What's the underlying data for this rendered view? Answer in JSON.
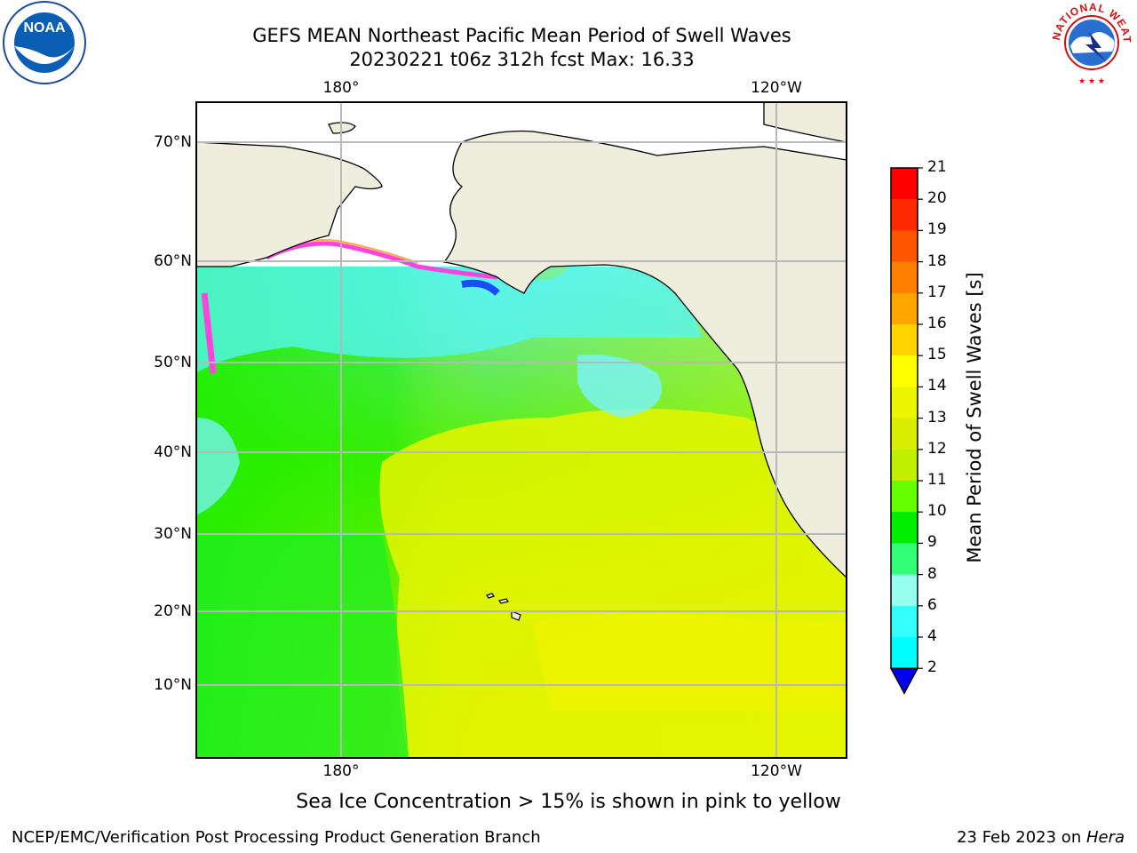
{
  "title_line1": "GEFS MEAN Northeast Pacific Mean Period of Swell Waves",
  "title_line2": "20230221 t06z 312h fcst   Max: 16.33",
  "ice_note": "Sea Ice Concentration > 15% is shown in pink to yellow",
  "footer_left": "NCEP/EMC/Verification Post Processing Product Generation Branch",
  "footer_date": "23 Feb 2023 on ",
  "footer_host": "Hera",
  "logos": {
    "noaa_text": "NOAA",
    "nws_text": "NATIONAL WEATHER SERVICE"
  },
  "map": {
    "lon_labels_top": [
      "180°",
      "120°W"
    ],
    "lon_labels_bottom": [
      "180°",
      "120°W"
    ],
    "lat_labels": [
      "70°N",
      "60°N",
      "50°N",
      "40°N",
      "30°N",
      "20°N",
      "10°N"
    ],
    "land_color": "#efedde",
    "grid_color": "#b8b8b8"
  },
  "colorbar": {
    "label": "Mean Period of Swell Waves [s]",
    "ticks": [
      "21",
      "20",
      "19",
      "18",
      "17",
      "16",
      "15",
      "14",
      "13",
      "12",
      "11",
      "10",
      "9",
      "8",
      "6",
      "4",
      "2"
    ],
    "colors": [
      "#ff0000",
      "#ff2a00",
      "#ff5500",
      "#ff7f00",
      "#ffa500",
      "#ffd400",
      "#ffff00",
      "#ecf500",
      "#d9ee00",
      "#bff000",
      "#66ff00",
      "#00ee00",
      "#33ff77",
      "#99ffee",
      "#33ffff",
      "#00ffff",
      "#00ccff",
      "#0066ff"
    ],
    "extend_color": "#0000ee"
  }
}
